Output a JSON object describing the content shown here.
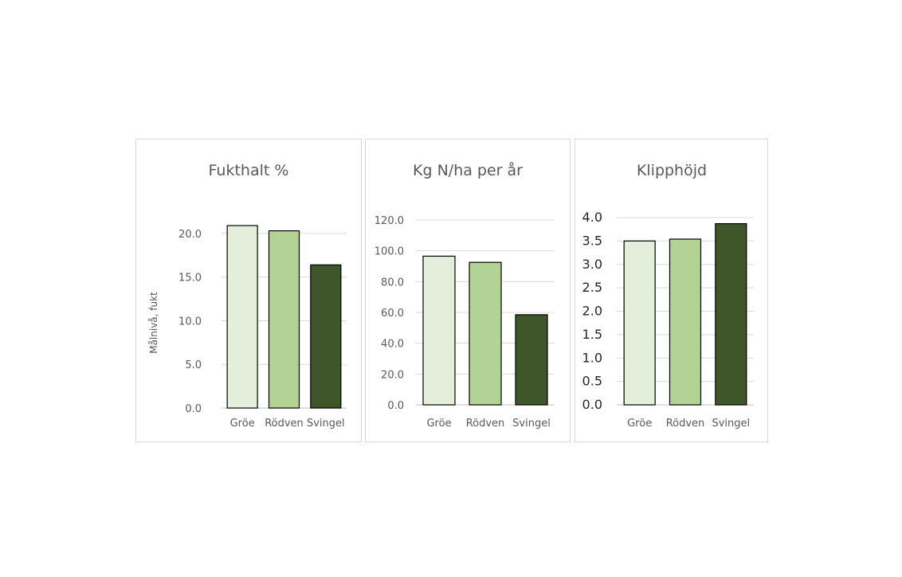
{
  "colors": {
    "series": [
      "#e3efdb",
      "#b3d295",
      "#3f562a"
    ],
    "grid": "#d9d9d9",
    "text": "#595959"
  },
  "chart_data": [
    {
      "type": "bar",
      "title": "Fukthalt %",
      "xlabel": "",
      "ylabel": "Målnivå, fukt",
      "categories": [
        "Gröe",
        "Rödven",
        "Svingel"
      ],
      "values": [
        20.9,
        20.3,
        16.4
      ],
      "ylim": [
        0,
        22
      ],
      "yticks": [
        0,
        5,
        10,
        15,
        20
      ],
      "ytick_labels": [
        "0.0",
        "5.0",
        "10.0",
        "15.0",
        "20.0"
      ],
      "grid": true,
      "legend": "none"
    },
    {
      "type": "bar",
      "title": "Kg N/ha per år",
      "xlabel": "",
      "ylabel": "",
      "categories": [
        "Gröe",
        "Rödven",
        "Svingel"
      ],
      "values": [
        96.5,
        92.5,
        58.5
      ],
      "ylim": [
        0,
        120
      ],
      "yticks": [
        0,
        20,
        40,
        60,
        80,
        100,
        120
      ],
      "ytick_labels": [
        "0.0",
        "20.0",
        "40.0",
        "60.0",
        "80.0",
        "100.0",
        "120.0"
      ],
      "grid": true,
      "legend": "none"
    },
    {
      "type": "bar",
      "title": "Klipphöjd",
      "xlabel": "",
      "ylabel": "",
      "categories": [
        "Gröe",
        "Rödven",
        "Svingel"
      ],
      "values": [
        3.5,
        3.54,
        3.87
      ],
      "ylim": [
        0,
        4
      ],
      "yticks": [
        0,
        0.5,
        1,
        1.5,
        2,
        2.5,
        3,
        3.5,
        4
      ],
      "ytick_labels": [
        "0.0",
        "0.5",
        "1.0",
        "1.5",
        "2.0",
        "2.5",
        "3.0",
        "3.5",
        "4.0"
      ],
      "grid": true,
      "legend": "none"
    }
  ]
}
